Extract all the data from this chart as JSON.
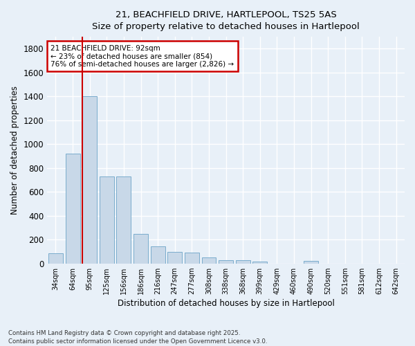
{
  "title_line1": "21, BEACHFIELD DRIVE, HARTLEPOOL, TS25 5AS",
  "title_line2": "Size of property relative to detached houses in Hartlepool",
  "xlabel": "Distribution of detached houses by size in Hartlepool",
  "ylabel": "Number of detached properties",
  "bar_color": "#c8d8e8",
  "bar_edge_color": "#7aaccc",
  "background_color": "#e8f0f8",
  "grid_color": "#ffffff",
  "categories": [
    "34sqm",
    "64sqm",
    "95sqm",
    "125sqm",
    "156sqm",
    "186sqm",
    "216sqm",
    "247sqm",
    "277sqm",
    "308sqm",
    "338sqm",
    "368sqm",
    "399sqm",
    "429sqm",
    "460sqm",
    "490sqm",
    "520sqm",
    "551sqm",
    "581sqm",
    "612sqm",
    "642sqm"
  ],
  "values": [
    88,
    920,
    1400,
    730,
    730,
    245,
    145,
    95,
    90,
    50,
    30,
    25,
    15,
    0,
    0,
    20,
    0,
    0,
    0,
    0,
    0
  ],
  "ylim": [
    0,
    1900
  ],
  "yticks": [
    0,
    200,
    400,
    600,
    800,
    1000,
    1200,
    1400,
    1600,
    1800
  ],
  "vline_color": "#cc0000",
  "vline_pos": 1.57,
  "annotation_text_line1": "21 BEACHFIELD DRIVE: 92sqm",
  "annotation_text_line2": "← 23% of detached houses are smaller (854)",
  "annotation_text_line3": "76% of semi-detached houses are larger (2,826) →",
  "annotation_box_color": "#ffffff",
  "annotation_border_color": "#cc0000",
  "footer_line1": "Contains HM Land Registry data © Crown copyright and database right 2025.",
  "footer_line2": "Contains public sector information licensed under the Open Government Licence v3.0."
}
